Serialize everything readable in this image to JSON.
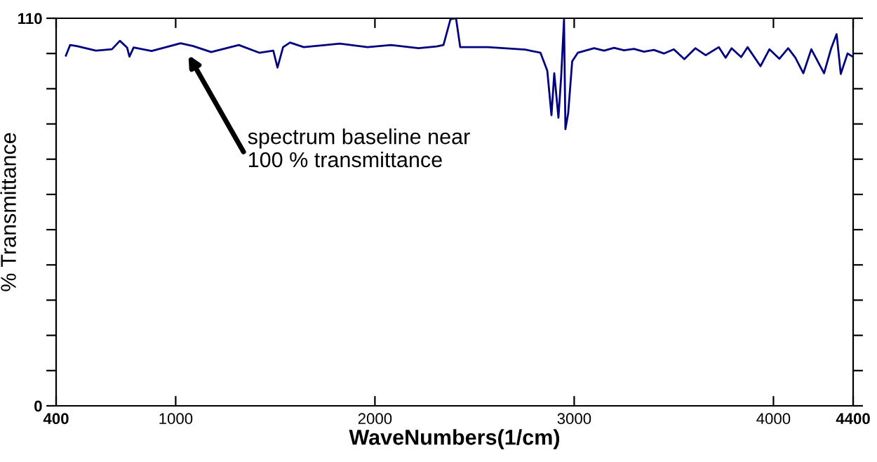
{
  "chart_data": {
    "type": "line",
    "xlabel": "WaveNumbers(1/cm)",
    "ylabel": "% Transmittance",
    "xlim": [
      400,
      4400
    ],
    "ylim": [
      0,
      110
    ],
    "xticks": [
      400,
      1000,
      2000,
      3000,
      4000,
      4400
    ],
    "yticks": [
      0,
      {
        "value": 10,
        "label": null
      },
      {
        "value": 20,
        "label": null
      },
      {
        "value": 30,
        "label": null
      },
      {
        "value": 40,
        "label": null
      },
      {
        "value": 50,
        "label": null
      },
      {
        "value": 60,
        "label": null
      },
      {
        "value": 70,
        "label": null
      },
      {
        "value": 80,
        "label": null
      },
      {
        "value": 90,
        "label": null
      },
      {
        "value": 100,
        "label": null
      },
      110
    ],
    "grid": false,
    "legend": false,
    "marker": "none",
    "line_style": "solid",
    "annotations": [
      "spectrum baseline near\n100 % transmittance"
    ],
    "series": [
      {
        "color": "#000080",
        "x": [
          449,
          470,
          504,
          600,
          680,
          720,
          756,
          768,
          789,
          879,
          1025,
          1088,
          1178,
          1317,
          1421,
          1490,
          1511,
          1539,
          1574,
          1643,
          1824,
          1963,
          2081,
          2219,
          2310,
          2344,
          2379,
          2407,
          2428,
          2567,
          2754,
          2831,
          2865,
          2886,
          2900,
          2921,
          2935,
          2949,
          2956,
          2970,
          2990,
          3018,
          3100,
          3150,
          3200,
          3250,
          3300,
          3350,
          3400,
          3450,
          3500,
          3553,
          3608,
          3660,
          3726,
          3760,
          3790,
          3838,
          3870,
          3935,
          3980,
          4030,
          4074,
          4110,
          4150,
          4190,
          4220,
          4254,
          4290,
          4317,
          4338,
          4372,
          4400
        ],
        "values": [
          99.4,
          102.4,
          102.1,
          100.8,
          101.2,
          103.6,
          101.7,
          99.1,
          101.7,
          100.7,
          102.9,
          102.1,
          100.4,
          102.4,
          100.2,
          100.8,
          96,
          101.8,
          103.1,
          101.8,
          102.8,
          101.8,
          102.4,
          101.5,
          102,
          102.4,
          109.7,
          110,
          101.8,
          101.8,
          101.1,
          100.2,
          95.1,
          82.5,
          94.4,
          81.8,
          93.8,
          109.7,
          78.5,
          83.1,
          97.8,
          100.2,
          101.5,
          100.8,
          101.6,
          100.9,
          101.3,
          100.5,
          101,
          100,
          101.2,
          98.4,
          101.5,
          99.5,
          101.8,
          98.8,
          101.5,
          99,
          101.8,
          96.4,
          101.2,
          98.5,
          101.5,
          98.8,
          94.4,
          101.2,
          98,
          94.4,
          101.5,
          105.5,
          94.2,
          100,
          99
        ]
      }
    ]
  }
}
